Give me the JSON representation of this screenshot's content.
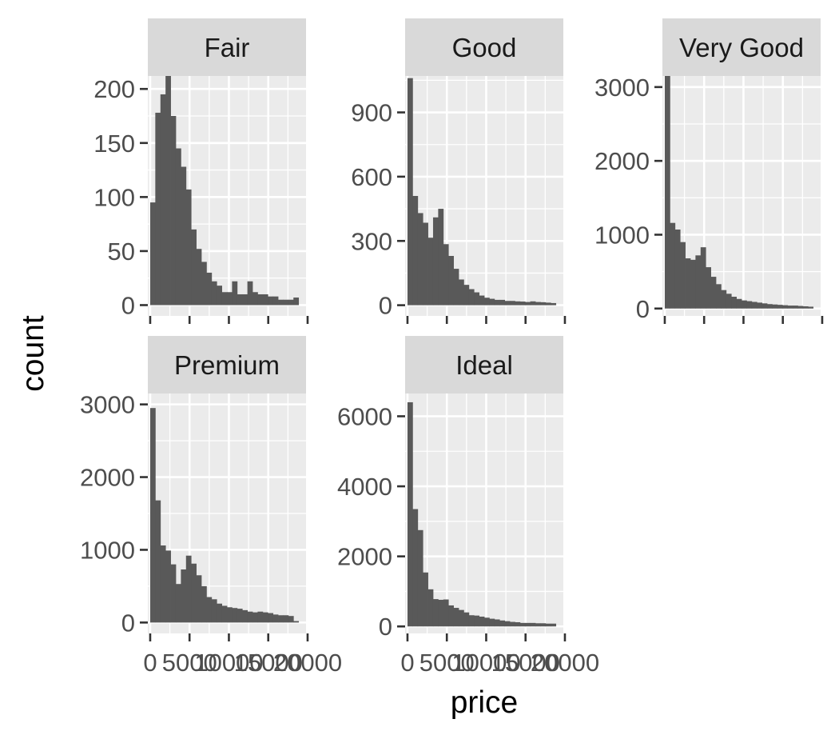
{
  "chart_data": {
    "type": "bar",
    "xlabel": "price",
    "ylabel": "count",
    "xlim": [
      -300,
      19800
    ],
    "x_ticks": [
      0,
      5000,
      10000,
      15000,
      20000
    ],
    "x_tick_labels": [
      "0",
      "5000",
      "10000",
      "15000",
      "20000"
    ],
    "bin_edges": [
      0,
      650,
      1300,
      1950,
      2600,
      3250,
      3900,
      4550,
      5200,
      5850,
      6500,
      7150,
      7800,
      8450,
      9100,
      9750,
      10400,
      11050,
      11700,
      12350,
      13000,
      13650,
      14300,
      14950,
      15600,
      16250,
      16900,
      17550,
      18200,
      18850
    ],
    "facets": [
      {
        "title": "Fair",
        "ylim": [
          -10,
          212
        ],
        "y_ticks": [
          0,
          50,
          100,
          150,
          200
        ],
        "y_tick_labels": [
          "0",
          "50",
          "100",
          "150",
          "200"
        ],
        "values": [
          95,
          178,
          195,
          212,
          175,
          145,
          128,
          107,
          70,
          52,
          40,
          30,
          22,
          18,
          12,
          12,
          22,
          10,
          10,
          22,
          12,
          10,
          10,
          8,
          8,
          5,
          5,
          5,
          7
        ]
      },
      {
        "title": "Good",
        "ylim": [
          -50,
          1070
        ],
        "y_ticks": [
          0,
          300,
          600,
          900
        ],
        "y_tick_labels": [
          "0",
          "300",
          "600",
          "900"
        ],
        "values": [
          1060,
          510,
          430,
          385,
          315,
          410,
          450,
          285,
          230,
          170,
          120,
          95,
          75,
          60,
          45,
          35,
          30,
          25,
          25,
          20,
          20,
          18,
          17,
          15,
          18,
          15,
          14,
          12,
          10
        ]
      },
      {
        "title": "Very Good",
        "ylim": [
          -100,
          3150
        ],
        "y_ticks": [
          0,
          1000,
          2000,
          3000
        ],
        "y_tick_labels": [
          "0",
          "1000",
          "2000",
          "3000"
        ],
        "values": [
          3150,
          1160,
          1070,
          900,
          680,
          660,
          720,
          830,
          560,
          430,
          330,
          250,
          200,
          160,
          130,
          110,
          100,
          90,
          80,
          70,
          60,
          55,
          50,
          45,
          40,
          40,
          35,
          30,
          25
        ]
      },
      {
        "title": "Premium",
        "ylim": [
          -150,
          3150
        ],
        "y_ticks": [
          0,
          1000,
          2000,
          3000
        ],
        "y_tick_labels": [
          "0",
          "1000",
          "2000",
          "3000"
        ],
        "values": [
          2950,
          1680,
          1060,
          990,
          800,
          530,
          730,
          920,
          810,
          650,
          500,
          350,
          320,
          260,
          230,
          210,
          200,
          190,
          170,
          150,
          140,
          150,
          140,
          130,
          110,
          100,
          100,
          90,
          20
        ]
      },
      {
        "title": "Ideal",
        "ylim": [
          -200,
          6650
        ],
        "y_ticks": [
          0,
          2000,
          4000,
          6000
        ],
        "y_tick_labels": [
          "0",
          "2000",
          "4000",
          "6000"
        ],
        "values": [
          6400,
          3350,
          2750,
          1540,
          1060,
          780,
          760,
          770,
          600,
          530,
          470,
          400,
          320,
          310,
          280,
          250,
          220,
          200,
          170,
          150,
          130,
          120,
          100,
          100,
          100,
          90,
          90,
          80,
          80
        ]
      }
    ]
  }
}
